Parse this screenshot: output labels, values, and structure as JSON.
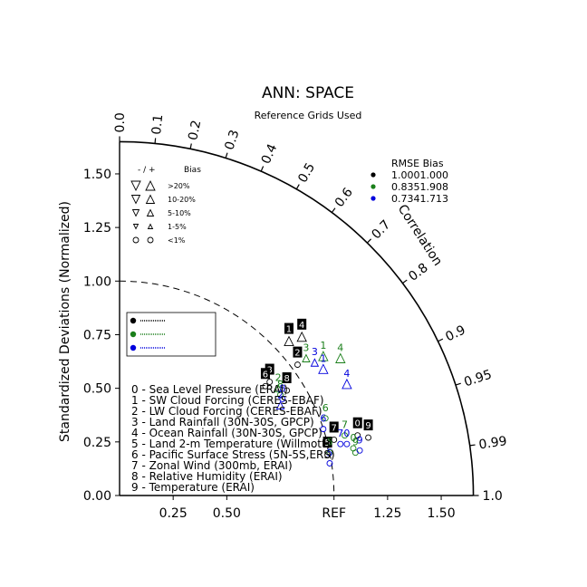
{
  "title": "ANN: SPACE",
  "subtitle": "Reference Grids Used",
  "ylabel": "Standardized Deviations (Normalized)",
  "corr_label": "Correlation",
  "ref_label": "REF",
  "y_ticks": [
    "0.00",
    "0.25",
    "0.50",
    "0.75",
    "1.00",
    "1.25",
    "1.50"
  ],
  "x_ticks": [
    "0.25",
    "0.50",
    "1.25",
    "1.50"
  ],
  "corr_ticks": [
    "0.0",
    "0.1",
    "0.2",
    "0.3",
    "0.4",
    "0.5",
    "0.6",
    "0.7",
    "0.8",
    "0.9",
    "0.95",
    "0.99",
    "1.0"
  ],
  "bias_legend": {
    "header_signs": "- / +",
    "header_bias": "Bias",
    "rows": [
      ">20%",
      "10-20%",
      "5-10%",
      "1-5%",
      "<1%"
    ]
  },
  "rmse_legend": {
    "header": "RMSE Bias",
    "rows": [
      {
        "rmse": "1.000",
        "bias": "1.000",
        "color": "#000000"
      },
      {
        "rmse": "0.835",
        "bias": "1.908",
        "color": "#1a7f1a"
      },
      {
        "rmse": "0.734",
        "bias": "1.713",
        "color": "#0000dd"
      }
    ]
  },
  "case_legend_colors": [
    "#000000",
    "#1a7f1a",
    "#0000dd"
  ],
  "variables": [
    "0 - Sea Level Pressure (ERAI)",
    "1 - SW Cloud Forcing (CERES-EBAF)",
    "2 - LW Cloud Forcing (CERES-EBAF)",
    "3 - Land Rainfall (30N-30S, GPCP)",
    "4 - Ocean Rainfall (30N-30S, GPCP)",
    "5 - Land 2-m Temperature (Willmott)",
    "6 - Pacific Surface Stress (5N-5S,ERS)",
    "7 - Zonal Wind (300mb, ERAI)",
    "8 - Relative Humidity (ERAI)",
    "9 - Temperature (ERAI)"
  ],
  "chart_data": {
    "type": "scatter",
    "description_type": "taylor",
    "xlim": [
      0,
      1.65
    ],
    "ylim": [
      0,
      1.65
    ],
    "series": [
      {
        "name": "",
        "color": "#000000",
        "points": [
          {
            "id": "0",
            "x": 1.11,
            "y": 0.28
          },
          {
            "id": "1",
            "x": 0.79,
            "y": 0.72
          },
          {
            "id": "2",
            "x": 0.83,
            "y": 0.61
          },
          {
            "id": "3",
            "x": 0.7,
            "y": 0.53
          },
          {
            "id": "4",
            "x": 0.85,
            "y": 0.74
          },
          {
            "id": "5",
            "x": 0.97,
            "y": 0.19
          },
          {
            "id": "6",
            "x": 0.68,
            "y": 0.51
          },
          {
            "id": "7",
            "x": 1.0,
            "y": 0.26
          },
          {
            "id": "8",
            "x": 0.78,
            "y": 0.49
          },
          {
            "id": "9",
            "x": 1.16,
            "y": 0.27
          }
        ]
      },
      {
        "name": "",
        "color": "#1a7f1a",
        "points": [
          {
            "id": "0",
            "x": 1.09,
            "y": 0.22
          },
          {
            "id": "1",
            "x": 0.95,
            "y": 0.65
          },
          {
            "id": "2",
            "x": 0.74,
            "y": 0.5
          },
          {
            "id": "3",
            "x": 0.87,
            "y": 0.64
          },
          {
            "id": "4",
            "x": 1.03,
            "y": 0.64
          },
          {
            "id": "5",
            "x": 0.98,
            "y": 0.2
          },
          {
            "id": "6",
            "x": 0.96,
            "y": 0.36
          },
          {
            "id": "7",
            "x": 1.05,
            "y": 0.28
          },
          {
            "id": "8",
            "x": 0.75,
            "y": 0.47
          },
          {
            "id": "9",
            "x": 1.1,
            "y": 0.2
          }
        ]
      },
      {
        "name": "",
        "color": "#0000dd",
        "points": [
          {
            "id": "0",
            "x": 1.06,
            "y": 0.24
          },
          {
            "id": "1",
            "x": 0.95,
            "y": 0.59
          },
          {
            "id": "2",
            "x": 0.75,
            "y": 0.42
          },
          {
            "id": "3",
            "x": 0.91,
            "y": 0.62
          },
          {
            "id": "4",
            "x": 1.06,
            "y": 0.52
          },
          {
            "id": "5",
            "x": 0.98,
            "y": 0.15
          },
          {
            "id": "6",
            "x": 0.95,
            "y": 0.31
          },
          {
            "id": "7",
            "x": 1.03,
            "y": 0.24
          },
          {
            "id": "8",
            "x": 0.76,
            "y": 0.45
          },
          {
            "id": "9",
            "x": 1.12,
            "y": 0.21
          }
        ]
      }
    ]
  }
}
